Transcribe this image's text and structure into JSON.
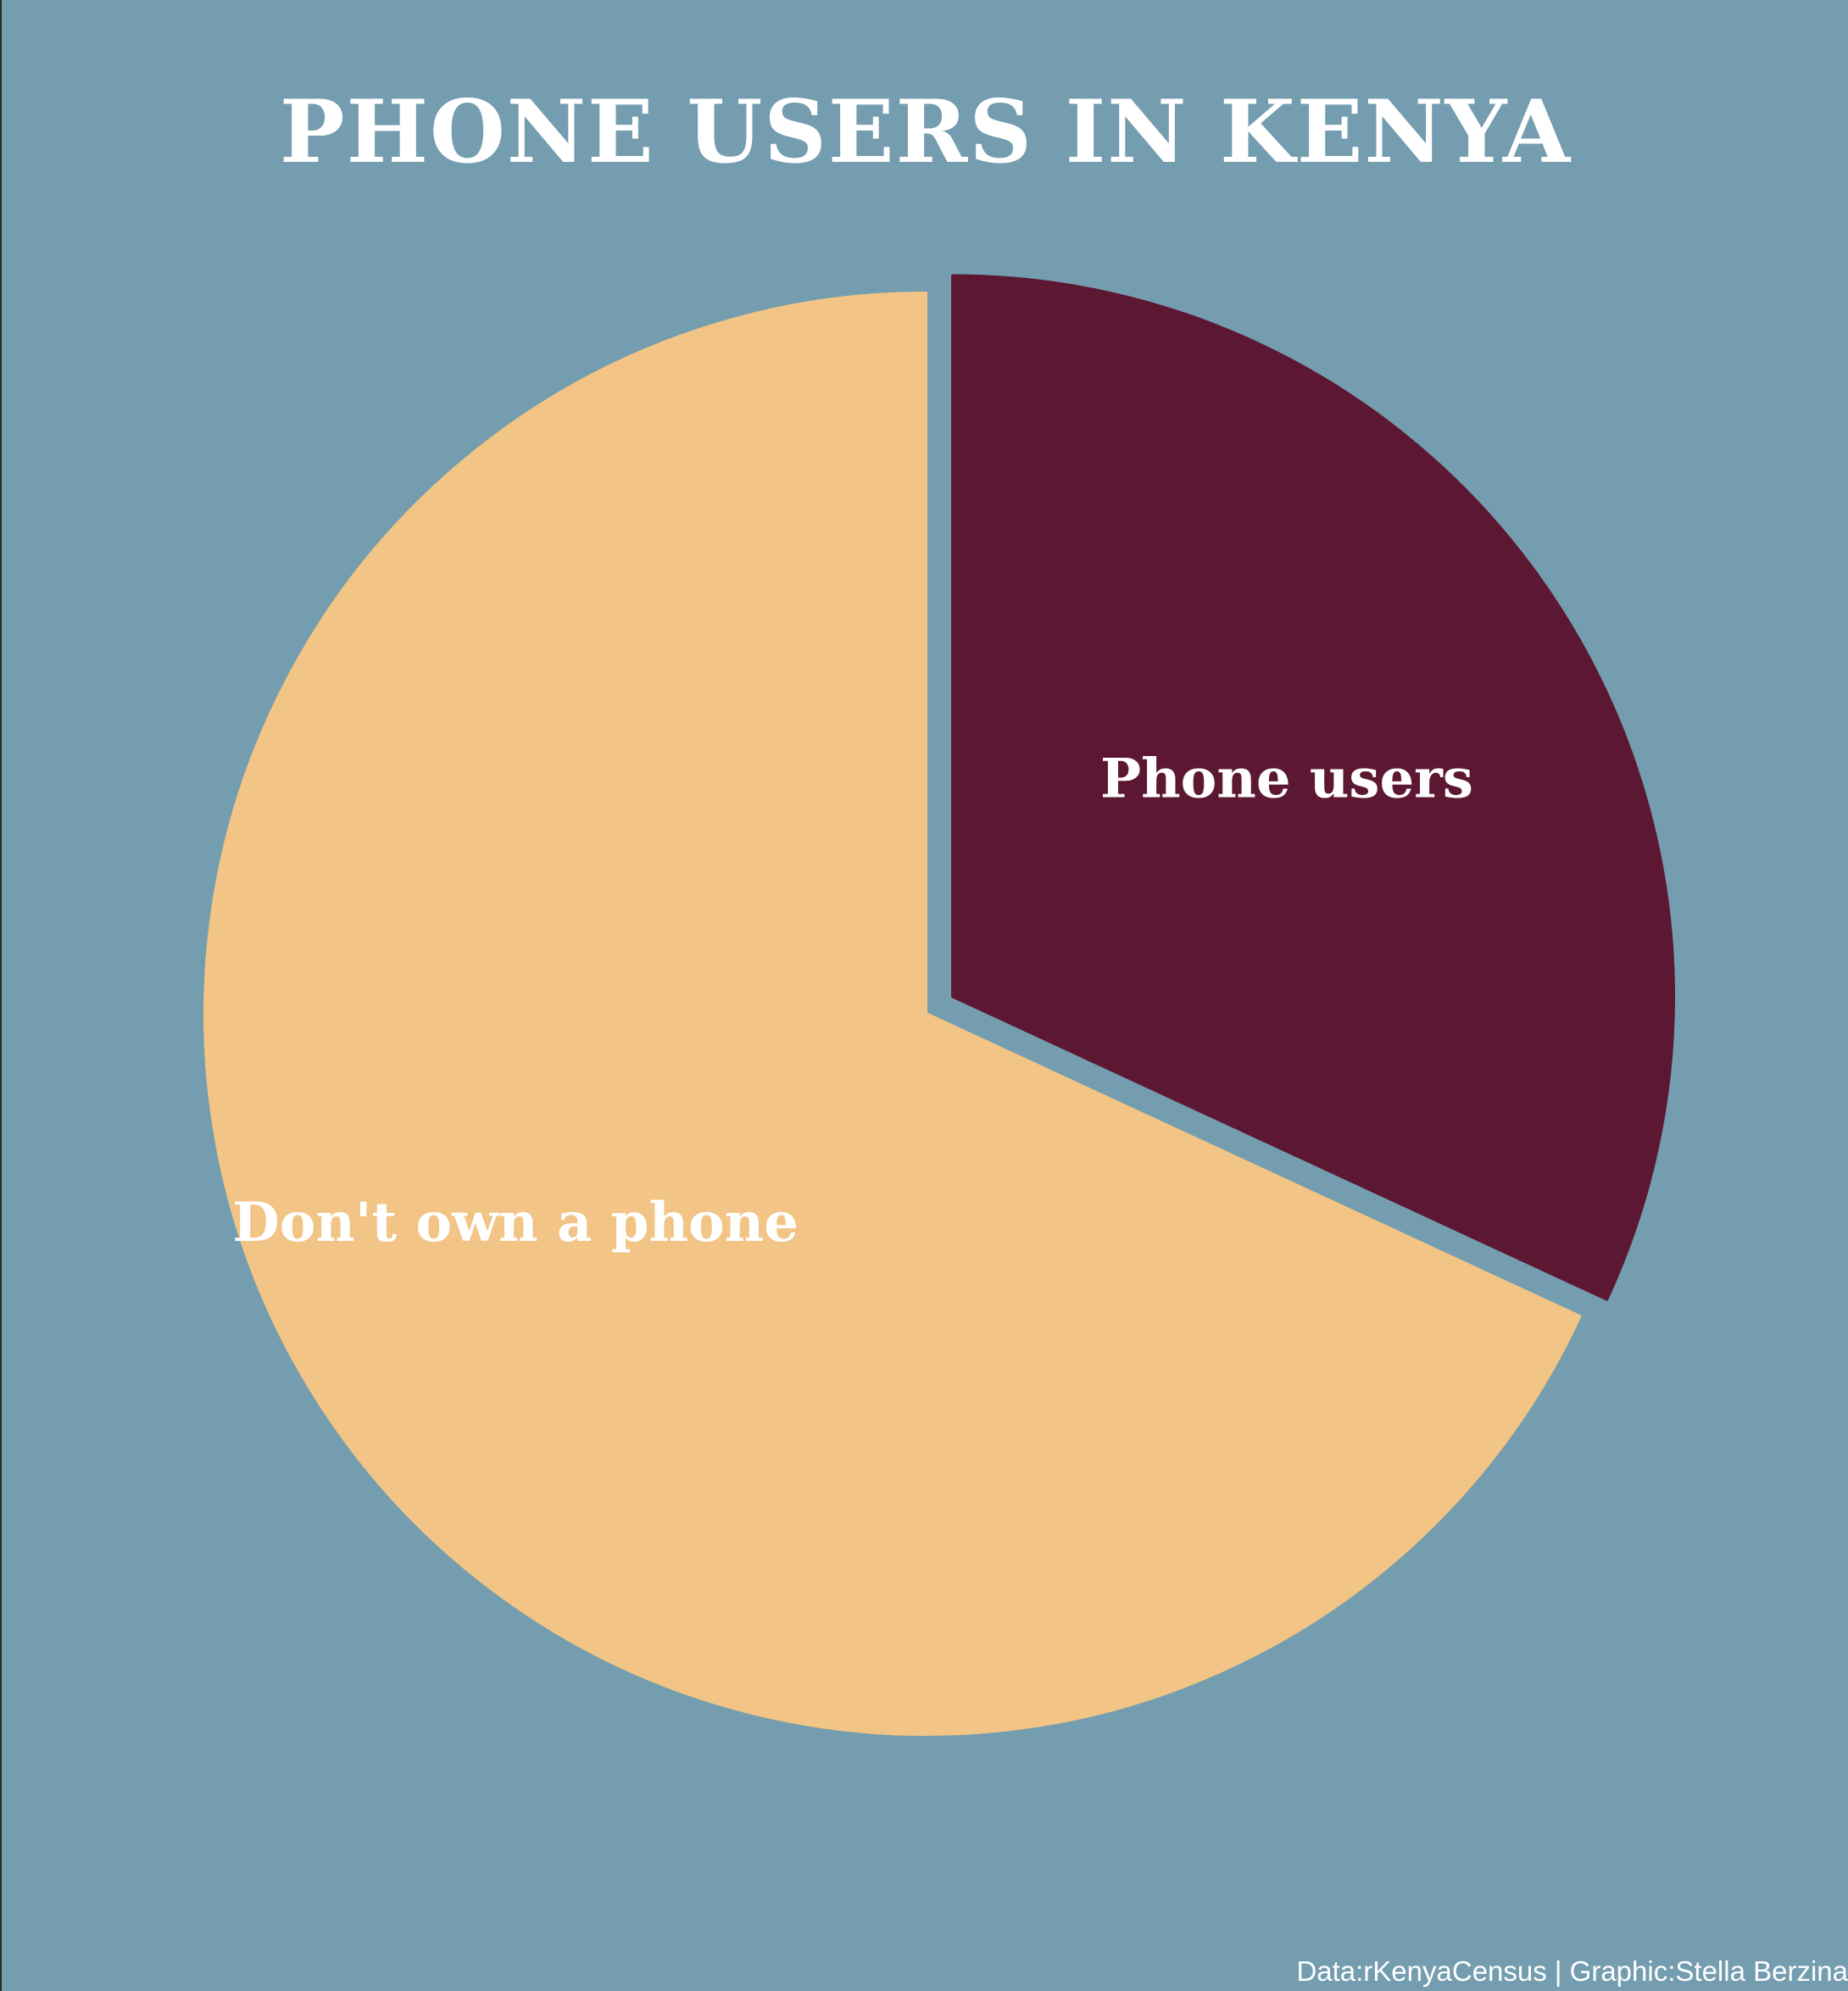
{
  "colors": {
    "background": "#749daf",
    "text": "#ffffff"
  },
  "chart_data": {
    "type": "pie",
    "title": "PHONE USERS IN KENYA",
    "slices": [
      {
        "label": "Phone users",
        "value": 31.9,
        "color": "#5c1833",
        "exploded": true
      },
      {
        "label": "Don't own a phone",
        "value": 68.1,
        "color": "#f2c485",
        "exploded": false
      }
    ],
    "start_angle": "12 o'clock, clockwise",
    "legend": "none (labels on slices)"
  },
  "caption": "Data:rKenyaCensus | Graphic:Stella Berzina"
}
